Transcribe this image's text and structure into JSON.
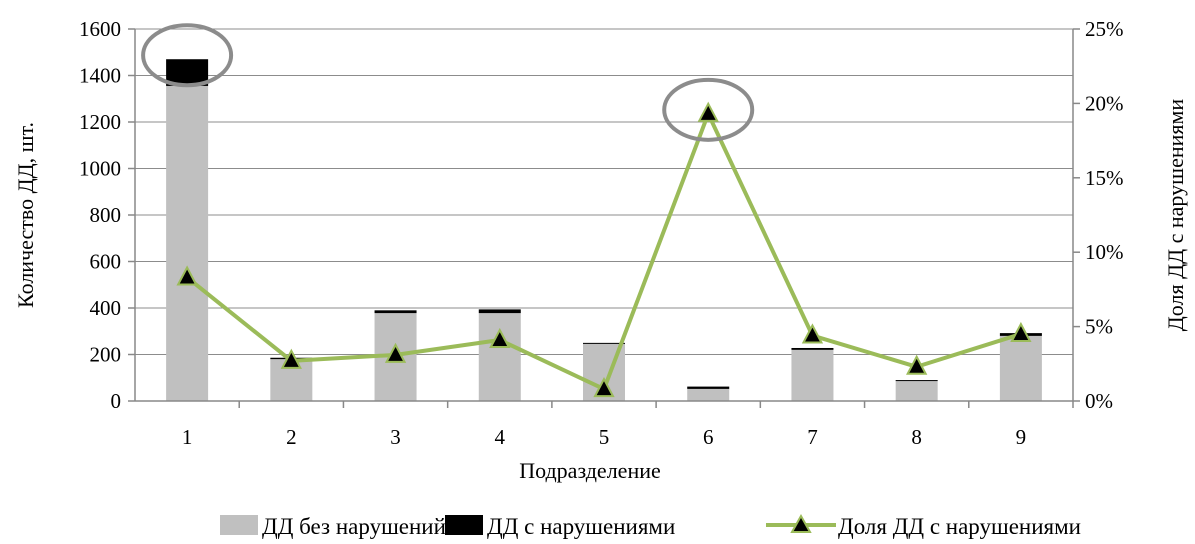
{
  "chart_data": {
    "type": "bar",
    "stacked": true,
    "categories": [
      "1",
      "2",
      "3",
      "4",
      "5",
      "6",
      "7",
      "8",
      "9"
    ],
    "series": [
      {
        "name": "ДД без нарушений",
        "kind": "bar",
        "axis": "left",
        "color": "#c0c0c0",
        "values": [
          1355,
          180,
          378,
          378,
          248,
          52,
          220,
          87,
          280
        ]
      },
      {
        "name": "ДД с нарушениями",
        "kind": "bar",
        "axis": "left",
        "color": "#000000",
        "values": [
          115,
          6,
          12,
          16,
          2,
          10,
          8,
          3,
          12
        ]
      },
      {
        "name": "Доля ДД с нарушениями",
        "kind": "line",
        "axis": "right",
        "color": "#9bbb59",
        "marker": "triangle",
        "values": [
          0.083,
          0.027,
          0.031,
          0.041,
          0.008,
          0.193,
          0.044,
          0.023,
          0.045
        ]
      }
    ],
    "xlabel": "Подразделение",
    "ylabel": "Количество ДД, шт.",
    "ylabel_right": "Доля ДД с нарушениями",
    "ylim": [
      0,
      1600
    ],
    "ylim_right": [
      0,
      0.25
    ],
    "yticks": [
      "0",
      "200",
      "400",
      "600",
      "800",
      "1000",
      "1200",
      "1400",
      "1600"
    ],
    "yticks_right": [
      "0%",
      "5%",
      "10%",
      "15%",
      "20%",
      "25%"
    ],
    "grid": true,
    "legend_position": "bottom",
    "highlighted_categories": [
      "1",
      "6"
    ]
  }
}
